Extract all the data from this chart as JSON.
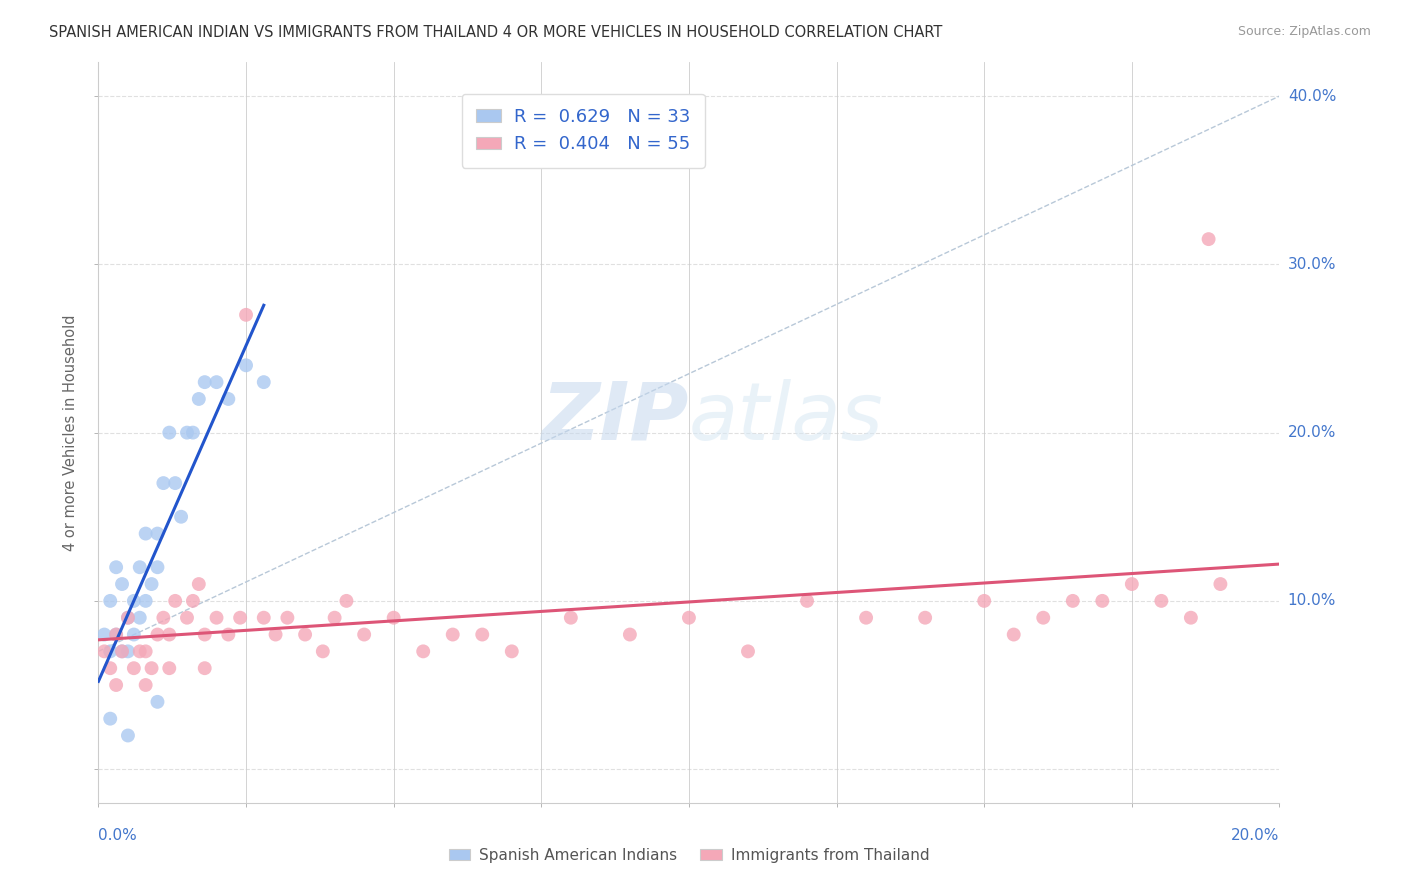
{
  "title": "SPANISH AMERICAN INDIAN VS IMMIGRANTS FROM THAILAND 4 OR MORE VEHICLES IN HOUSEHOLD CORRELATION CHART",
  "source": "Source: ZipAtlas.com",
  "ylabel": "4 or more Vehicles in Household",
  "legend_label_blue": "Spanish American Indians",
  "legend_label_pink": "Immigrants from Thailand",
  "r_blue": 0.629,
  "n_blue": 33,
  "r_pink": 0.404,
  "n_pink": 55,
  "xmin": 0.0,
  "xmax": 0.2,
  "ymin": -0.02,
  "ymax": 0.42,
  "blue_color": "#aac8f0",
  "pink_color": "#f4a8b8",
  "blue_line_color": "#2255cc",
  "pink_line_color": "#dd5577",
  "watermark_zip": "ZIP",
  "watermark_atlas": "atlas",
  "background_color": "#ffffff",
  "grid_color": "#e0e0e0",
  "blue_scatter_x": [
    0.001,
    0.002,
    0.002,
    0.003,
    0.003,
    0.004,
    0.004,
    0.005,
    0.005,
    0.006,
    0.006,
    0.007,
    0.007,
    0.008,
    0.008,
    0.009,
    0.01,
    0.01,
    0.011,
    0.012,
    0.013,
    0.014,
    0.015,
    0.016,
    0.017,
    0.018,
    0.02,
    0.022,
    0.025,
    0.028,
    0.002,
    0.005,
    0.01
  ],
  "blue_scatter_y": [
    0.08,
    0.07,
    0.1,
    0.08,
    0.12,
    0.07,
    0.11,
    0.09,
    0.07,
    0.1,
    0.08,
    0.12,
    0.09,
    0.14,
    0.1,
    0.11,
    0.14,
    0.12,
    0.17,
    0.2,
    0.17,
    0.15,
    0.2,
    0.2,
    0.22,
    0.23,
    0.23,
    0.22,
    0.24,
    0.23,
    0.03,
    0.02,
    0.04
  ],
  "pink_scatter_x": [
    0.001,
    0.002,
    0.003,
    0.004,
    0.005,
    0.006,
    0.007,
    0.008,
    0.009,
    0.01,
    0.011,
    0.012,
    0.013,
    0.015,
    0.016,
    0.017,
    0.018,
    0.02,
    0.022,
    0.024,
    0.025,
    0.028,
    0.03,
    0.032,
    0.035,
    0.038,
    0.04,
    0.042,
    0.045,
    0.05,
    0.055,
    0.06,
    0.065,
    0.07,
    0.08,
    0.09,
    0.1,
    0.11,
    0.12,
    0.13,
    0.14,
    0.15,
    0.155,
    0.16,
    0.165,
    0.17,
    0.175,
    0.18,
    0.185,
    0.19,
    0.003,
    0.008,
    0.012,
    0.018,
    0.188
  ],
  "pink_scatter_y": [
    0.07,
    0.06,
    0.08,
    0.07,
    0.09,
    0.06,
    0.07,
    0.07,
    0.06,
    0.08,
    0.09,
    0.08,
    0.1,
    0.09,
    0.1,
    0.11,
    0.08,
    0.09,
    0.08,
    0.09,
    0.27,
    0.09,
    0.08,
    0.09,
    0.08,
    0.07,
    0.09,
    0.1,
    0.08,
    0.09,
    0.07,
    0.08,
    0.08,
    0.07,
    0.09,
    0.08,
    0.09,
    0.07,
    0.1,
    0.09,
    0.09,
    0.1,
    0.08,
    0.09,
    0.1,
    0.1,
    0.11,
    0.1,
    0.09,
    0.11,
    0.05,
    0.05,
    0.06,
    0.06,
    0.315
  ],
  "xtick_positions": [
    0.0,
    0.025,
    0.05,
    0.075,
    0.1,
    0.125,
    0.15,
    0.175,
    0.2
  ],
  "ytick_positions": [
    0.0,
    0.1,
    0.2,
    0.3,
    0.4
  ],
  "ytick_right_labels": [
    "10.0%",
    "20.0%",
    "30.0%",
    "40.0%"
  ],
  "ytick_right_vals": [
    0.1,
    0.2,
    0.3,
    0.4
  ]
}
